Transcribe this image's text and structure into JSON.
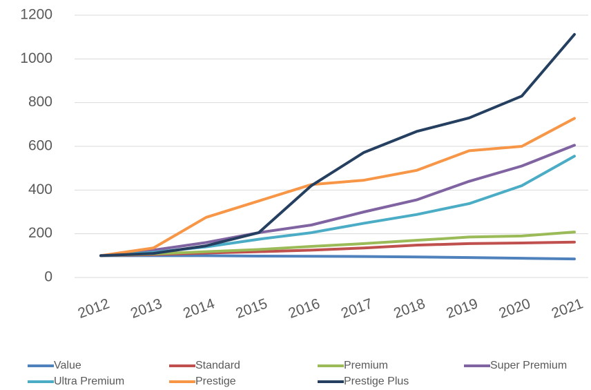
{
  "chart_data": {
    "type": "line",
    "categories": [
      "2012",
      "2013",
      "2014",
      "2015",
      "2016",
      "2017",
      "2018",
      "2019",
      "2020",
      "2021"
    ],
    "series": [
      {
        "name": "Value",
        "color": "#4f81bd",
        "values": [
          100,
          100,
          100,
          98,
          97,
          96,
          94,
          91,
          88,
          85
        ]
      },
      {
        "name": "Standard",
        "color": "#c0504d",
        "values": [
          100,
          105,
          112,
          118,
          125,
          135,
          148,
          155,
          158,
          162
        ]
      },
      {
        "name": "Premium",
        "color": "#9bbb59",
        "values": [
          100,
          108,
          118,
          128,
          142,
          155,
          170,
          185,
          190,
          208
        ]
      },
      {
        "name": "Super Premium",
        "color": "#8064a2",
        "values": [
          100,
          125,
          160,
          205,
          240,
          300,
          355,
          440,
          510,
          605
        ]
      },
      {
        "name": "Ultra Premium",
        "color": "#4bacc6",
        "values": [
          100,
          115,
          140,
          175,
          205,
          248,
          288,
          338,
          420,
          555
        ]
      },
      {
        "name": "Prestige",
        "color": "#f79646",
        "values": [
          100,
          135,
          275,
          350,
          425,
          445,
          490,
          580,
          600,
          728
        ]
      },
      {
        "name": "Prestige Plus",
        "color": "#243f60",
        "values": [
          100,
          110,
          145,
          205,
          420,
          572,
          668,
          730,
          830,
          1112
        ]
      }
    ],
    "ylim": [
      0,
      1200
    ],
    "yticks": [
      0,
      200,
      400,
      600,
      800,
      1000,
      1200
    ],
    "grid": true,
    "legend": "bottom"
  }
}
